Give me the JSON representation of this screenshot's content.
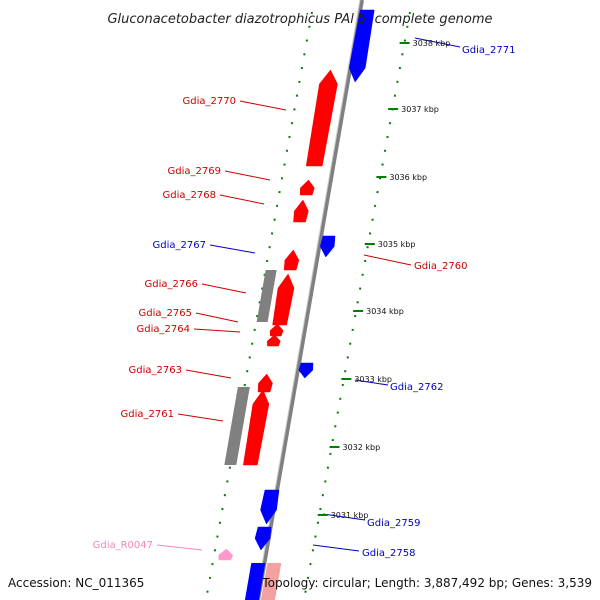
{
  "title": "Gluconacetobacter diazotrophicus PAl 5, complete genome",
  "footer": {
    "accession": "Accession: NC_011365",
    "topology": "Topology: circular; Length: 3,887,492 bp; Genes: 3,539"
  },
  "colors": {
    "forward_gene": "#ff0000",
    "reverse_gene": "#0000ff",
    "pseudo_gene": "#808080",
    "rna_gene": "#ff99cc",
    "forward_label": "#cc0000",
    "reverse_label": "#0000cc",
    "rna_label": "#ee88bb",
    "tick": "#008000",
    "backbone": "#808080"
  },
  "ticks": [
    {
      "label": "3038 kbp"
    },
    {
      "label": "3037 kbp"
    },
    {
      "label": "3036 kbp"
    },
    {
      "label": "3035 kbp"
    },
    {
      "label": "3034 kbp"
    },
    {
      "label": "3033 kbp"
    },
    {
      "label": "3032 kbp"
    },
    {
      "label": "3031 kbp"
    }
  ],
  "genes": [
    {
      "label": "Gdia_2771",
      "strand": "reverse"
    },
    {
      "label": "Gdia_2770",
      "strand": "forward"
    },
    {
      "label": "Gdia_2769",
      "strand": "forward"
    },
    {
      "label": "Gdia_2768",
      "strand": "forward"
    },
    {
      "label": "Gdia_2767",
      "strand": "reverse"
    },
    {
      "label": "Gdia_2766",
      "strand": "forward"
    },
    {
      "label": "Gdia_2765",
      "strand": "forward"
    },
    {
      "label": "Gdia_2764",
      "strand": "forward"
    },
    {
      "label": "Gdia_2763",
      "strand": "forward"
    },
    {
      "label": "Gdia_2762",
      "strand": "reverse"
    },
    {
      "label": "Gdia_2761",
      "strand": "forward"
    },
    {
      "label": "Gdia_2760",
      "strand": "forward"
    },
    {
      "label": "Gdia_2759",
      "strand": "reverse"
    },
    {
      "label": "Gdia_2758",
      "strand": "reverse"
    },
    {
      "label": "Gdia_R0047",
      "strand": "rna"
    }
  ]
}
